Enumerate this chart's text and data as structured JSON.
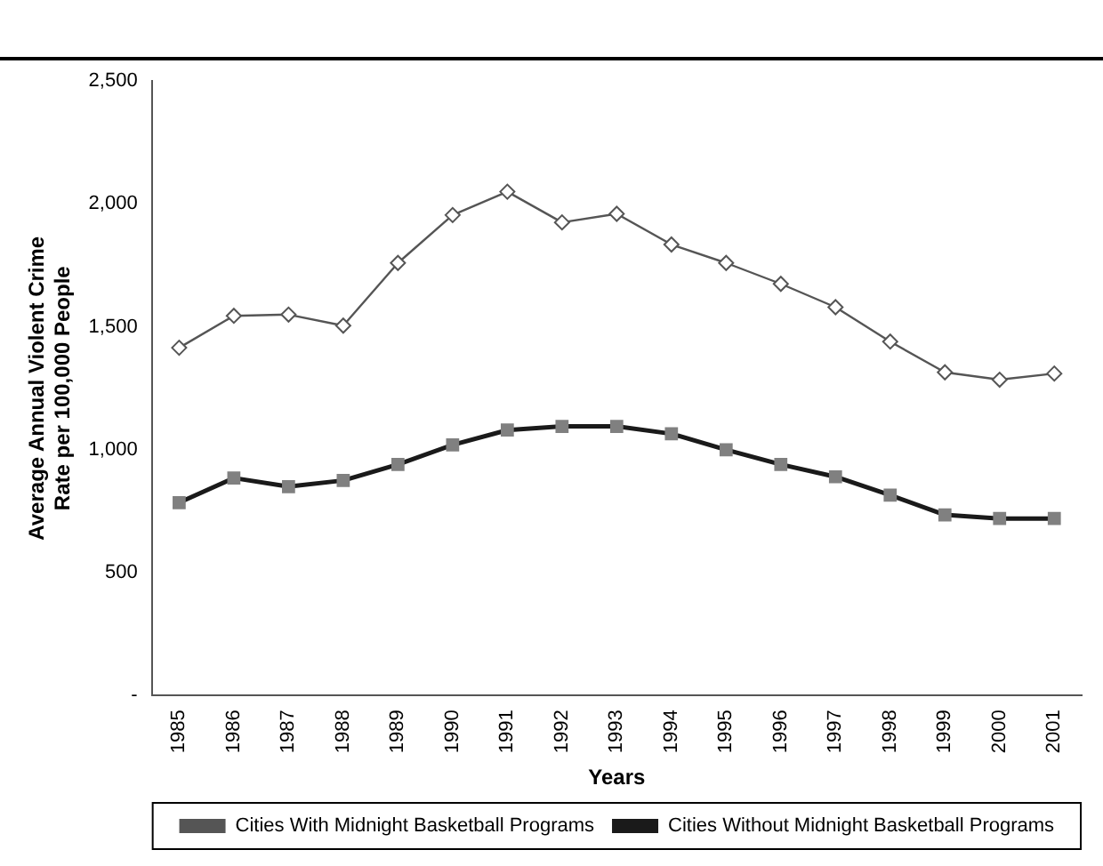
{
  "chart_data": {
    "type": "line",
    "xlabel": "Years",
    "ylabel": "Average Annual Violent Crime Rate per 100,000 People",
    "categories": [
      "1985",
      "1986",
      "1987",
      "1988",
      "1989",
      "1990",
      "1991",
      "1992",
      "1993",
      "1994",
      "1995",
      "1996",
      "1997",
      "1998",
      "1999",
      "2000",
      "2001"
    ],
    "series": [
      {
        "name": "Cities With Midnight Basketball Programs",
        "color": "#555555",
        "marker": "diamond",
        "values": [
          1415,
          1545,
          1550,
          1505,
          1760,
          1955,
          2050,
          1925,
          1960,
          1835,
          1760,
          1675,
          1580,
          1440,
          1315,
          1285,
          1310
        ]
      },
      {
        "name": "Cities Without Midnight Basketball Programs",
        "color": "#1a1a1a",
        "marker": "square",
        "values": [
          785,
          885,
          850,
          875,
          940,
          1020,
          1080,
          1095,
          1095,
          1065,
          1000,
          940,
          890,
          815,
          735,
          720,
          720
        ]
      }
    ],
    "ylim": [
      0,
      2500
    ],
    "yticks": [
      {
        "value": 0,
        "label": "-"
      },
      500,
      {
        "value": 1000,
        "label": "1,000"
      },
      {
        "value": 1500,
        "label": "1,500"
      },
      {
        "value": 2000,
        "label": "2,000"
      },
      {
        "value": 2500,
        "label": "2,500"
      }
    ],
    "grid": false,
    "legend": "bottom"
  }
}
